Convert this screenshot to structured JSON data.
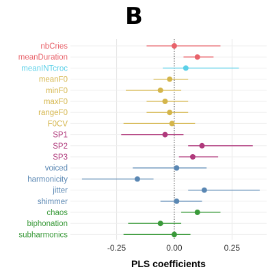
{
  "panel_label": "B",
  "chart_data": {
    "type": "scatter",
    "subtype": "dot-and-whisker",
    "title": "",
    "xlabel": "PLS coefficients",
    "ylabel": "",
    "xlim": [
      -0.45,
      0.4
    ],
    "xticks": [
      {
        "value": -0.25,
        "label": "-0.25"
      },
      {
        "value": 0.0,
        "label": "0.00"
      },
      {
        "value": 0.25,
        "label": "0.25"
      }
    ],
    "reference_line": {
      "x": 0,
      "style": "dotted"
    },
    "grid": true,
    "legend": "none",
    "colors": {
      "cries": "#e8636b",
      "intercroc": "#5bd0e8",
      "f0": "#d4b54a",
      "sp": "#b03a7c",
      "voice": "#5a87b3",
      "nonlinear": "#3a9a3a"
    },
    "points": [
      {
        "label": "nbCries",
        "value": 0.0,
        "low": -0.12,
        "high": 0.2,
        "group": "cries"
      },
      {
        "label": "meanDuration",
        "value": 0.1,
        "low": 0.04,
        "high": 0.17,
        "group": "cries"
      },
      {
        "label": "meanINTcroc",
        "value": 0.05,
        "low": -0.05,
        "high": 0.28,
        "group": "intercroc"
      },
      {
        "label": "meanF0",
        "value": -0.02,
        "low": -0.09,
        "high": 0.06,
        "group": "f0"
      },
      {
        "label": "minF0",
        "value": -0.06,
        "low": -0.21,
        "high": 0.03,
        "group": "f0"
      },
      {
        "label": "maxF0",
        "value": -0.04,
        "low": -0.12,
        "high": 0.06,
        "group": "f0"
      },
      {
        "label": "rangeF0",
        "value": -0.02,
        "low": -0.12,
        "high": 0.06,
        "group": "f0"
      },
      {
        "label": "F0CV",
        "value": -0.01,
        "low": -0.22,
        "high": 0.09,
        "group": "f0"
      },
      {
        "label": "SP1",
        "value": -0.04,
        "low": -0.23,
        "high": 0.04,
        "group": "sp"
      },
      {
        "label": "SP2",
        "value": 0.12,
        "low": 0.06,
        "high": 0.34,
        "group": "sp"
      },
      {
        "label": "SP3",
        "value": 0.08,
        "low": 0.02,
        "high": 0.19,
        "group": "sp"
      },
      {
        "label": "voiced",
        "value": 0.01,
        "low": -0.18,
        "high": 0.14,
        "group": "voice"
      },
      {
        "label": "harmonicity",
        "value": -0.16,
        "low": -0.4,
        "high": -0.09,
        "group": "voice"
      },
      {
        "label": "jitter",
        "value": 0.13,
        "low": 0.06,
        "high": 0.37,
        "group": "voice"
      },
      {
        "label": "shimmer",
        "value": 0.01,
        "low": -0.06,
        "high": 0.12,
        "group": "voice"
      },
      {
        "label": "chaos",
        "value": 0.1,
        "low": 0.03,
        "high": 0.2,
        "group": "nonlinear"
      },
      {
        "label": "biphonation",
        "value": -0.06,
        "low": -0.2,
        "high": 0.03,
        "group": "nonlinear"
      },
      {
        "label": "subharmonics",
        "value": 0.0,
        "low": -0.22,
        "high": 0.07,
        "group": "nonlinear"
      }
    ]
  }
}
